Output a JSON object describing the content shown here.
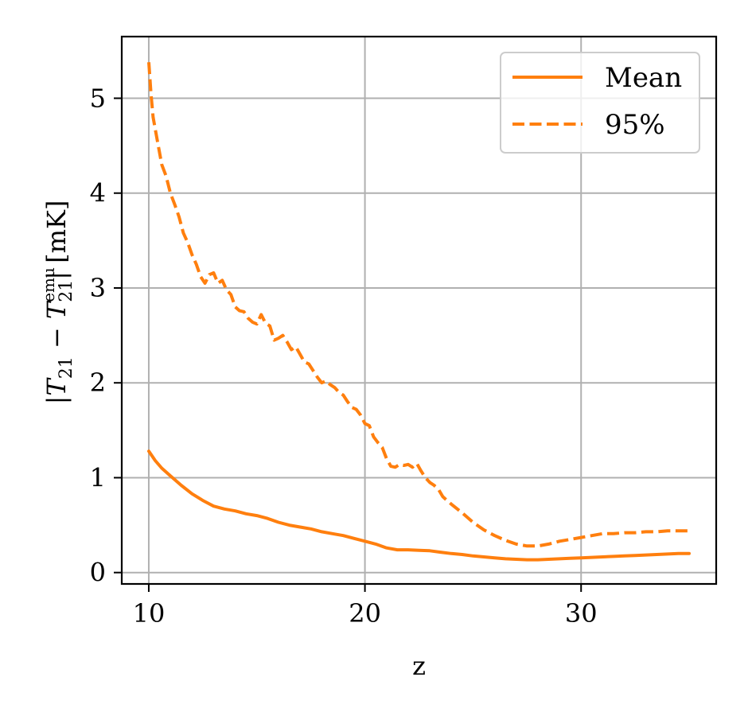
{
  "chart_data": {
    "type": "line",
    "title": "",
    "xlabel": "z",
    "ylabel": "|T_21 − T_21^emu| [mK]",
    "ylabel_parts": {
      "open": "|",
      "main": "T",
      "sub1": "21",
      "minus": " − ",
      "sup": "emu",
      "sub2": "21",
      "close": "| [mK]"
    },
    "xlim": [
      8.75,
      36.25
    ],
    "ylim": [
      -0.12,
      5.65
    ],
    "xticks": [
      10,
      20,
      30
    ],
    "xtick_labels": [
      "10",
      "20",
      "30"
    ],
    "yticks": [
      0,
      1,
      2,
      3,
      4,
      5
    ],
    "ytick_labels": [
      "0",
      "1",
      "2",
      "3",
      "4",
      "5"
    ],
    "grid": true,
    "legend_position": "top-right",
    "series": [
      {
        "name": "Mean",
        "style": "solid",
        "color": "#ff7f0e",
        "x": [
          10.0,
          10.3,
          10.6,
          11.0,
          11.5,
          12.0,
          12.5,
          13.0,
          13.5,
          14.0,
          14.5,
          15.0,
          15.5,
          16.0,
          16.5,
          17.0,
          17.5,
          18.0,
          18.5,
          19.0,
          19.5,
          20.0,
          20.5,
          21.0,
          21.5,
          22.0,
          22.5,
          23.0,
          23.5,
          24.0,
          24.5,
          25.0,
          25.5,
          26.0,
          26.5,
          27.0,
          27.5,
          28.0,
          28.5,
          29.0,
          29.5,
          30.0,
          30.5,
          31.0,
          31.5,
          32.0,
          32.5,
          33.0,
          33.5,
          34.0,
          34.5,
          35.0
        ],
        "y": [
          1.28,
          1.18,
          1.1,
          1.02,
          0.92,
          0.83,
          0.76,
          0.7,
          0.67,
          0.65,
          0.62,
          0.6,
          0.57,
          0.53,
          0.5,
          0.48,
          0.46,
          0.43,
          0.41,
          0.39,
          0.36,
          0.33,
          0.3,
          0.26,
          0.24,
          0.24,
          0.235,
          0.23,
          0.215,
          0.2,
          0.19,
          0.175,
          0.165,
          0.155,
          0.145,
          0.14,
          0.135,
          0.135,
          0.14,
          0.145,
          0.15,
          0.155,
          0.16,
          0.165,
          0.17,
          0.175,
          0.18,
          0.185,
          0.19,
          0.195,
          0.2,
          0.2
        ]
      },
      {
        "name": "95%",
        "style": "dashed",
        "color": "#ff7f0e",
        "x": [
          10.0,
          10.1,
          10.2,
          10.4,
          10.6,
          10.8,
          11.0,
          11.2,
          11.4,
          11.6,
          11.8,
          12.0,
          12.2,
          12.4,
          12.6,
          12.8,
          13.0,
          13.2,
          13.4,
          13.6,
          13.8,
          14.0,
          14.2,
          14.4,
          14.6,
          14.8,
          15.0,
          15.2,
          15.4,
          15.6,
          15.8,
          16.0,
          16.2,
          16.4,
          16.6,
          16.8,
          17.0,
          17.2,
          17.4,
          17.6,
          17.8,
          18.0,
          18.2,
          18.4,
          18.6,
          18.8,
          19.0,
          19.2,
          19.4,
          19.6,
          19.8,
          20.0,
          20.2,
          20.4,
          20.6,
          20.8,
          21.0,
          21.2,
          21.4,
          21.6,
          21.8,
          22.0,
          22.2,
          22.4,
          22.6,
          22.8,
          23.0,
          23.2,
          23.4,
          23.6,
          23.8,
          24.0,
          24.5,
          25.0,
          25.5,
          26.0,
          26.5,
          27.0,
          27.5,
          28.0,
          28.5,
          29.0,
          29.5,
          30.0,
          30.5,
          31.0,
          31.5,
          32.0,
          32.5,
          33.0,
          33.5,
          34.0,
          34.5,
          35.0
        ],
        "y": [
          5.38,
          5.05,
          4.8,
          4.55,
          4.3,
          4.18,
          4.0,
          3.88,
          3.75,
          3.58,
          3.48,
          3.35,
          3.25,
          3.12,
          3.05,
          3.14,
          3.16,
          3.05,
          3.08,
          2.98,
          2.93,
          2.8,
          2.76,
          2.75,
          2.68,
          2.64,
          2.62,
          2.72,
          2.63,
          2.6,
          2.45,
          2.47,
          2.5,
          2.43,
          2.35,
          2.38,
          2.3,
          2.22,
          2.2,
          2.13,
          2.06,
          2.0,
          2.02,
          1.98,
          1.95,
          1.9,
          1.87,
          1.8,
          1.74,
          1.72,
          1.66,
          1.57,
          1.55,
          1.43,
          1.37,
          1.32,
          1.2,
          1.12,
          1.11,
          1.14,
          1.13,
          1.14,
          1.11,
          1.15,
          1.07,
          1.0,
          0.95,
          0.92,
          0.88,
          0.8,
          0.76,
          0.72,
          0.63,
          0.53,
          0.45,
          0.39,
          0.34,
          0.3,
          0.28,
          0.28,
          0.3,
          0.33,
          0.35,
          0.37,
          0.39,
          0.41,
          0.41,
          0.42,
          0.42,
          0.43,
          0.43,
          0.44,
          0.44,
          0.44
        ]
      }
    ]
  }
}
